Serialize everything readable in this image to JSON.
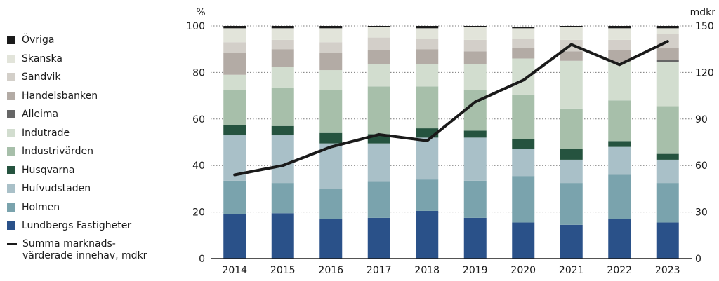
{
  "chart_data": {
    "type": "bar",
    "stacked": true,
    "categories": [
      "2014",
      "2015",
      "2016",
      "2017",
      "2018",
      "2019",
      "2020",
      "2021",
      "2022",
      "2023"
    ],
    "y_left": {
      "unit_label": "%",
      "ylim": [
        0,
        100
      ],
      "ticks": [
        0,
        20,
        40,
        60,
        80,
        100
      ]
    },
    "y_right": {
      "unit_label": "mdkr",
      "ylim": [
        0,
        150
      ],
      "ticks": [
        0,
        30,
        60,
        90,
        120,
        150
      ]
    },
    "series": [
      {
        "name": "Lundbergs Fastigheter",
        "color": "#2a5189",
        "values": [
          19,
          19.5,
          17,
          17.5,
          20.5,
          17.5,
          15.5,
          14.5,
          17,
          15.5
        ]
      },
      {
        "name": "Holmen",
        "color": "#7aa3ad",
        "values": [
          14.5,
          13,
          13,
          15.5,
          13.5,
          16,
          20,
          18,
          19,
          17
        ]
      },
      {
        "name": "Hufvudstaden",
        "color": "#a9c0c8",
        "values": [
          19.5,
          20.5,
          19.5,
          16.5,
          18,
          18.5,
          11.5,
          10,
          12,
          10
        ]
      },
      {
        "name": "Husqvarna",
        "color": "#25533f",
        "values": [
          4.5,
          4,
          4.5,
          4,
          4,
          3,
          4.5,
          4.5,
          2.5,
          2.5
        ]
      },
      {
        "name": "Industrivärden",
        "color": "#a7bfaa",
        "values": [
          15,
          16.5,
          18.5,
          20.5,
          18,
          17.5,
          19,
          17.5,
          17.5,
          20.5
        ]
      },
      {
        "name": "Indutrade",
        "color": "#d2ddcf",
        "values": [
          6.5,
          9,
          8.5,
          9.5,
          9.5,
          11,
          15.5,
          20.5,
          16.5,
          19
        ]
      },
      {
        "name": "Alleima",
        "color": "#666666",
        "values": [
          0,
          0,
          0,
          0,
          0,
          0,
          0,
          0,
          0,
          1
        ]
      },
      {
        "name": "Handelsbanken",
        "color": "#b3aba5",
        "values": [
          9.5,
          7.5,
          7.5,
          6,
          6.5,
          5.5,
          4.5,
          4,
          5,
          5
        ]
      },
      {
        "name": "Sandvik",
        "color": "#d3cfc9",
        "values": [
          4.5,
          4,
          4.5,
          5.5,
          4.5,
          5,
          4,
          5,
          4.5,
          6
        ]
      },
      {
        "name": "Skanska",
        "color": "#e2e4da",
        "values": [
          6,
          5,
          6,
          4.5,
          4.5,
          5.5,
          4.5,
          5.5,
          5,
          2.5
        ]
      },
      {
        "name": "Övriga",
        "color": "#1a1a1a",
        "values": [
          1,
          1,
          1,
          0.5,
          1,
          0.5,
          0.5,
          0.5,
          1,
          1
        ]
      }
    ],
    "line": {
      "name": "Summa marknads-värderade innehav, mdkr",
      "axis": "right",
      "color": "#1a1a1a",
      "values": [
        54,
        60,
        72,
        80,
        76,
        101,
        115,
        138,
        125,
        140
      ]
    },
    "grid": true,
    "legend_position": "left"
  }
}
